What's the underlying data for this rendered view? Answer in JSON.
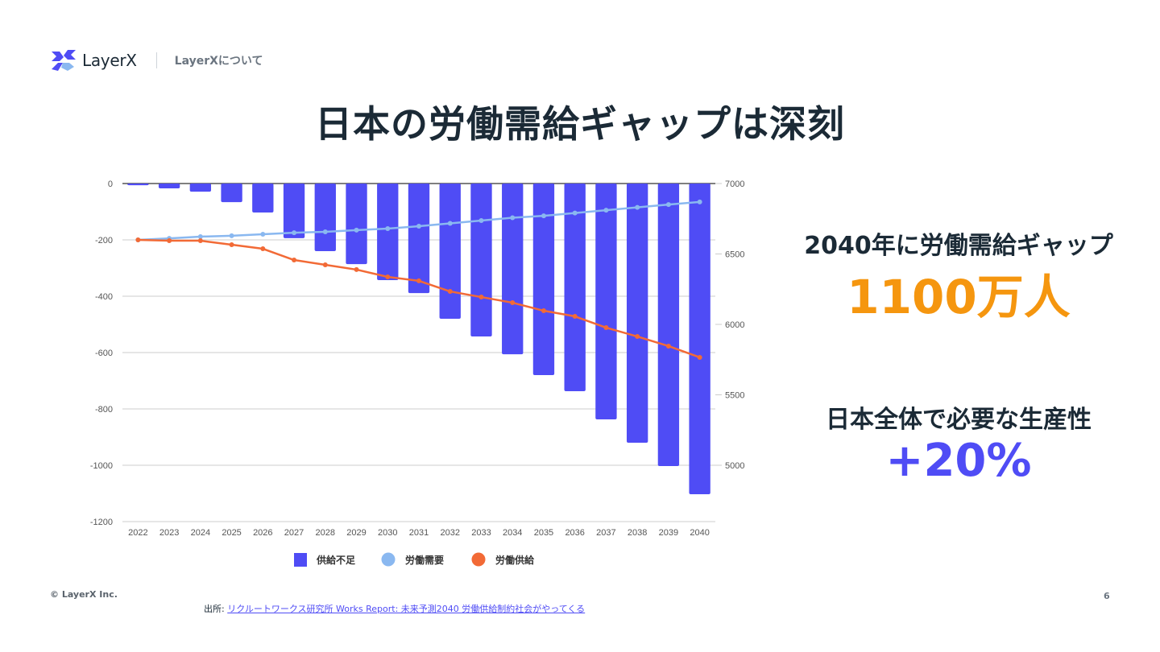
{
  "header": {
    "logo_text": "LayerX",
    "section": "LayerXについて"
  },
  "title": "日本の労働需給ギャップは深刻",
  "stats": {
    "gap_label": "2040年に労働需給ギャップ",
    "gap_value": "1100万人",
    "productivity_label": "日本全体で必要な生産性",
    "productivity_value": "+20%"
  },
  "footer": {
    "copyright": "© LayerX Inc.",
    "page_number": "6",
    "source_prefix": "出所: ",
    "source_link": "リクルートワークス研究所 Works Report: 未来予測2040 労働供給制約社会がやってくる"
  },
  "colors": {
    "shortage": "#4f4cf5",
    "demand": "#8ab8f0",
    "supply": "#f26a36",
    "accent_orange": "#f5960f",
    "text_dark": "#1b2a36"
  },
  "chart_data": {
    "type": "bar+line",
    "title": "",
    "xlabel": "",
    "ylabel_left": "",
    "ylabel_right": "",
    "categories": [
      "2022",
      "2023",
      "2024",
      "2025",
      "2026",
      "2027",
      "2028",
      "2029",
      "2030",
      "2031",
      "2032",
      "2033",
      "2034",
      "2035",
      "2036",
      "2037",
      "2038",
      "2039",
      "2040"
    ],
    "left_axis": {
      "range": [
        -1200,
        0
      ],
      "ticks": [
        0,
        -200,
        -400,
        -600,
        -800,
        -1000,
        -1200
      ]
    },
    "right_axis": {
      "range": [
        4800,
        7000
      ],
      "ticks": [
        7000,
        6500,
        6000,
        5500,
        5000
      ]
    },
    "grid": true,
    "legend_position": "bottom",
    "series": [
      {
        "name": "供給不足",
        "type": "bar",
        "axis": "left",
        "values": [
          -6,
          -17,
          -29,
          -66,
          -103,
          -194,
          -240,
          -286,
          -343,
          -389,
          -480,
          -543,
          -606,
          -680,
          -737,
          -837,
          -920,
          -1003,
          -1103
        ]
      },
      {
        "name": "労働需要",
        "type": "line",
        "axis": "right",
        "values": [
          6600,
          6611,
          6623,
          6629,
          6640,
          6651,
          6657,
          6669,
          6680,
          6697,
          6717,
          6737,
          6757,
          6771,
          6791,
          6811,
          6831,
          6851,
          6869
        ]
      },
      {
        "name": "労働供給",
        "type": "line",
        "axis": "right",
        "values": [
          6600,
          6594,
          6594,
          6566,
          6537,
          6457,
          6423,
          6389,
          6337,
          6309,
          6234,
          6194,
          6154,
          6097,
          6057,
          5977,
          5914,
          5846,
          5766
        ]
      }
    ]
  }
}
